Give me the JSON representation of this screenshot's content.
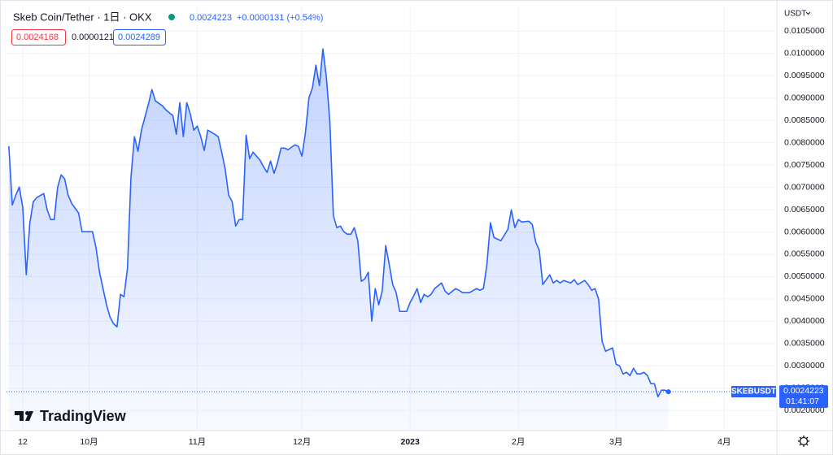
{
  "header": {
    "symbol": "Skeb Coin/Tether · 1日 · OKX",
    "close": "0.0024223",
    "change": "+0.0000131 (+0.54%)",
    "box_low": "0.0024168",
    "box_diff": "0.0000121",
    "box_high": "0.0024289",
    "currency": "USDT",
    "watermark": "TradingView"
  },
  "chart_data": {
    "type": "area",
    "color": "#2962ff",
    "x": [
      -4,
      -3,
      -2,
      -1,
      0,
      1,
      2,
      3,
      4,
      6,
      7,
      8,
      9,
      10,
      11,
      12,
      13,
      14,
      16,
      17,
      19,
      20,
      21,
      22,
      23,
      24,
      25,
      26,
      27,
      28,
      29,
      30,
      31,
      32,
      33,
      34,
      36,
      37,
      38,
      40,
      41,
      43,
      44,
      45,
      46,
      47,
      48,
      49,
      50,
      51,
      52,
      53,
      55,
      56,
      57,
      58,
      59,
      60,
      61,
      62,
      63,
      64,
      65,
      66,
      67,
      68,
      69,
      70,
      71,
      72,
      73,
      74,
      75,
      76,
      78,
      79,
      80,
      81,
      82,
      83,
      84,
      85,
      86,
      87,
      88,
      89,
      90,
      91,
      92,
      93,
      94,
      95,
      96,
      97,
      98,
      99,
      100,
      101,
      102,
      103,
      104,
      105,
      106,
      107,
      108,
      110,
      111,
      112,
      113,
      114,
      115,
      116,
      117,
      118,
      120,
      121,
      122,
      124,
      125,
      126,
      128,
      130,
      131,
      132,
      133,
      134,
      135,
      136,
      137,
      139,
      140,
      141,
      142,
      143,
      145,
      146,
      147,
      148,
      149,
      151,
      152,
      153,
      154,
      155,
      157,
      158,
      159,
      161,
      162,
      163,
      164,
      165,
      166,
      167,
      169,
      170,
      171,
      172,
      173,
      174,
      175,
      176,
      177,
      178,
      179,
      180,
      181,
      182,
      183,
      184,
      185
    ],
    "values": [
      0.00792,
      0.006605,
      0.006824,
      0.007006,
      0.006551,
      0.00504,
      0.006187,
      0.006678,
      0.006769,
      0.00686,
      0.006496,
      0.006278,
      0.006278,
      0.007006,
      0.007279,
      0.007188,
      0.006824,
      0.006642,
      0.006423,
      0.006005,
      0.006005,
      0.006005,
      0.005641,
      0.005095,
      0.004731,
      0.004367,
      0.004094,
      0.003948,
      0.003875,
      0.004603,
      0.004549,
      0.005186,
      0.007224,
      0.008134,
      0.007806,
      0.00828,
      0.008862,
      0.00919,
      0.008935,
      0.008826,
      0.008735,
      0.008607,
      0.008189,
      0.008898,
      0.008134,
      0.008898,
      0.008644,
      0.00828,
      0.008371,
      0.008134,
      0.007825,
      0.00828,
      0.008189,
      0.008134,
      0.007788,
      0.007406,
      0.006824,
      0.006678,
      0.006132,
      0.006278,
      0.006278,
      0.00817,
      0.007643,
      0.007788,
      0.007697,
      0.007606,
      0.007461,
      0.007333,
      0.007588,
      0.007315,
      0.007552,
      0.007879,
      0.007879,
      0.007843,
      0.007952,
      0.007916,
      0.007697,
      0.008225,
      0.009008,
      0.009226,
      0.009736,
      0.009281,
      0.0101,
      0.009463,
      0.008462,
      0.006369,
      0.006096,
      0.006132,
      0.006005,
      0.00595,
      0.00595,
      0.006096,
      0.005804,
      0.004894,
      0.004949,
      0.005095,
      0.004003,
      0.004731,
      0.004367,
      0.004676,
      0.005695,
      0.005277,
      0.004822,
      0.00464,
      0.004221,
      0.004221,
      0.004421,
      0.004567,
      0.004731,
      0.004421,
      0.004603,
      0.004549,
      0.004603,
      0.004731,
      0.004858,
      0.004676,
      0.004603,
      0.004731,
      0.004694,
      0.00464,
      0.00464,
      0.004731,
      0.004694,
      0.004731,
      0.005277,
      0.006205,
      0.005877,
      0.005841,
      0.005804,
      0.006059,
      0.006496,
      0.006096,
      0.006278,
      0.006223,
      0.006241,
      0.006168,
      0.005768,
      0.005586,
      0.004822,
      0.00504,
      0.004858,
      0.004913,
      0.004858,
      0.004913,
      0.004858,
      0.004931,
      0.004822,
      0.004913,
      0.004822,
      0.004694,
      0.004731,
      0.004494,
      0.003548,
      0.003329,
      0.003402,
      0.003038,
      0.003002,
      0.00282,
      0.002856,
      0.002783,
      0.002947,
      0.00282,
      0.00282,
      0.002856,
      0.002783,
      0.002601,
      0.002601,
      0.00231,
      0.002456,
      0.002456,
      0.0024223
    ],
    "xlim": [
      -4.66,
      216.08
    ],
    "xticks": [
      {
        "value": 0,
        "label": "12"
      },
      {
        "value": 19,
        "label": "10月"
      },
      {
        "value": 50,
        "label": "11月"
      },
      {
        "value": 80,
        "label": "12月"
      },
      {
        "value": 111,
        "label": "2023"
      },
      {
        "value": 142,
        "label": "2月"
      },
      {
        "value": 170,
        "label": "3月"
      },
      {
        "value": 201,
        "label": "4月"
      }
    ],
    "ylim": [
      0.00155,
      0.01105
    ],
    "yticks": [
      {
        "value": 0.002,
        "label": "0.0020000"
      },
      {
        "value": 0.0025,
        "label": "0.0025000"
      },
      {
        "value": 0.003,
        "label": "0.0030000"
      },
      {
        "value": 0.0035,
        "label": "0.0035000"
      },
      {
        "value": 0.004,
        "label": "0.0040000"
      },
      {
        "value": 0.0045,
        "label": "0.0045000"
      },
      {
        "value": 0.005,
        "label": "0.0050000"
      },
      {
        "value": 0.0055,
        "label": "0.0055000"
      },
      {
        "value": 0.006,
        "label": "0.0060000"
      },
      {
        "value": 0.0065,
        "label": "0.0065000"
      },
      {
        "value": 0.007,
        "label": "0.0070000"
      },
      {
        "value": 0.0075,
        "label": "0.0075000"
      },
      {
        "value": 0.008,
        "label": "0.0080000"
      },
      {
        "value": 0.0085,
        "label": "0.0085000"
      },
      {
        "value": 0.009,
        "label": "0.0090000"
      },
      {
        "value": 0.0095,
        "label": "0.0095000"
      },
      {
        "value": 0.01,
        "label": "0.0100000"
      },
      {
        "value": 0.0105,
        "label": "0.0105000"
      }
    ],
    "grid": true,
    "last_price": 0.0024223,
    "symbol_tag": "SKEBUSDT",
    "countdown": "01:41:07"
  }
}
